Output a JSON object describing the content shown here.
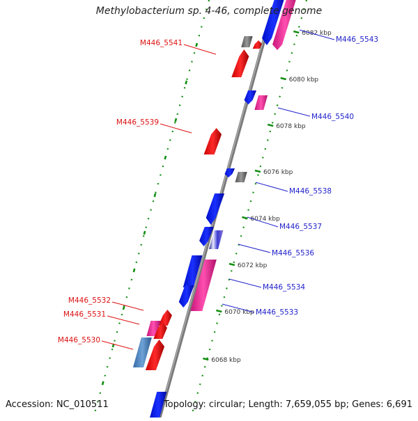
{
  "title": "Methylobacterium sp. 4-46, complete genome",
  "footer": {
    "accession": "Accession: NC_010511",
    "topology": "Topology: circular; Length: 7,659,055 bp; Genes: 6,691"
  },
  "colors": {
    "forward_label": "#2222cc",
    "reverse_label": "#dd1111",
    "blue_gene": "#0a16f0",
    "red_gene": "#f01010",
    "pink_gene": "#ee2b9a",
    "gray_gene": "#6c6c6c",
    "steel_gene": "#4b83be",
    "ruler": "#138f13",
    "backbone": "#7a7a7a"
  },
  "scale_ticks": [
    {
      "label": "6082 kbp"
    },
    {
      "label": "6080 kbp"
    },
    {
      "label": "6078 kbp"
    },
    {
      "label": "6076 kbp"
    },
    {
      "label": "6074 kbp"
    },
    {
      "label": "6072 kbp"
    },
    {
      "label": "6070 kbp"
    },
    {
      "label": "6068 kbp"
    }
  ],
  "gene_labels": [
    {
      "text": "M446_5543",
      "strand": "forward"
    },
    {
      "text": "M446_5541",
      "strand": "reverse"
    },
    {
      "text": "M446_5540",
      "strand": "forward"
    },
    {
      "text": "M446_5539",
      "strand": "reverse"
    },
    {
      "text": "M446_5538",
      "strand": "forward"
    },
    {
      "text": "M446_5537",
      "strand": "forward"
    },
    {
      "text": "M446_5536",
      "strand": "forward"
    },
    {
      "text": "M446_5534",
      "strand": "forward"
    },
    {
      "text": "M446_5533",
      "strand": "forward"
    },
    {
      "text": "M446_5532",
      "strand": "reverse"
    },
    {
      "text": "M446_5531",
      "strand": "reverse"
    },
    {
      "text": "M446_5530",
      "strand": "reverse"
    }
  ]
}
